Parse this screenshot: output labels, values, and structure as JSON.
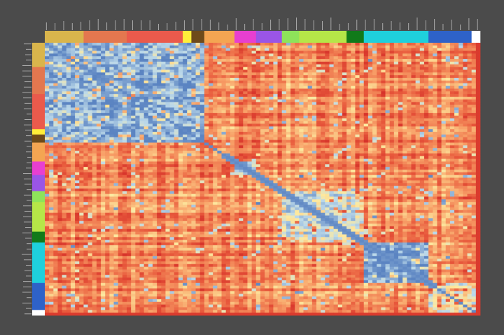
{
  "chart_data": {
    "type": "heatmap",
    "title": "",
    "xlabel": "",
    "ylabel": "",
    "legend": "none",
    "grid": false,
    "cluster_color_names": [
      "mustard",
      "salmon",
      "red",
      "yellow",
      "brown",
      "orange",
      "magenta",
      "violet",
      "light-green",
      "lime",
      "dark-green",
      "cyan",
      "blue",
      "white"
    ],
    "cluster_colors": [
      "#d9b54c",
      "#e3774f",
      "#ea5a4c",
      "#ffef3a",
      "#6e4a1a",
      "#f4a552",
      "#e83fd0",
      "#9a55e6",
      "#8ee35a",
      "#b6e648",
      "#117a1a",
      "#1fd0dc",
      "#2e62c8",
      "#ffffff"
    ],
    "cluster_sizes": [
      9,
      10,
      13,
      2,
      3,
      7,
      5,
      6,
      4,
      11,
      4,
      15,
      10,
      2
    ],
    "value_range": [
      0,
      1
    ],
    "colormap": {
      "low": "#5b84c2",
      "lowmid": "#bcd9ea",
      "mid": "#fdeaa0",
      "midhigh": "#f8a168",
      "high": "#e8593c",
      "max": "#d7342b"
    },
    "blocks": [
      {
        "clusters": [
          0,
          4
        ],
        "mean_value": 0.12
      },
      {
        "clusters": [
          6,
          6
        ],
        "mean_value": 0.18
      },
      {
        "clusters": [
          8,
          10
        ],
        "mean_value": 0.35
      },
      {
        "clusters": [
          11,
          11
        ],
        "mean_value": 0.08
      },
      {
        "clusters": [
          12,
          13
        ],
        "mean_value": 0.38
      }
    ],
    "off_block_mean_value": 0.72,
    "x_tick_labels": [],
    "y_tick_labels": []
  }
}
